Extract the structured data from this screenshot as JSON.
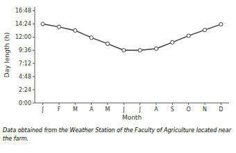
{
  "chart_data": {
    "type": "line",
    "categories": [
      "J",
      "F",
      "M",
      "A",
      "M",
      "J",
      "J",
      "A",
      "S",
      "O",
      "N",
      "D"
    ],
    "values": [
      14.4,
      13.87,
      13.2,
      11.9,
      10.8,
      9.6,
      9.6,
      9.9,
      11.05,
      12.25,
      13.3,
      14.35
    ],
    "x_label": "Month",
    "y_label": "Day length (h)",
    "ylim": [
      0.0,
      17.5
    ],
    "yticks": [
      {
        "value": 0.0,
        "label": "0:00"
      },
      {
        "value": 2.4,
        "label": "2:24"
      },
      {
        "value": 4.8,
        "label": "4:48"
      },
      {
        "value": 7.2,
        "label": "7:12"
      },
      {
        "value": 9.6,
        "label": "9:36"
      },
      {
        "value": 12.0,
        "label": "12:00"
      },
      {
        "value": 14.4,
        "label": "14:24"
      },
      {
        "value": 16.8,
        "label": "16:48"
      }
    ],
    "annotations": [
      "Data obtained from the Weather Station of the Faculty of Agriculture located near",
      "the farm."
    ],
    "color": "#3a3a3a",
    "marker": "circle",
    "grid": false
  }
}
